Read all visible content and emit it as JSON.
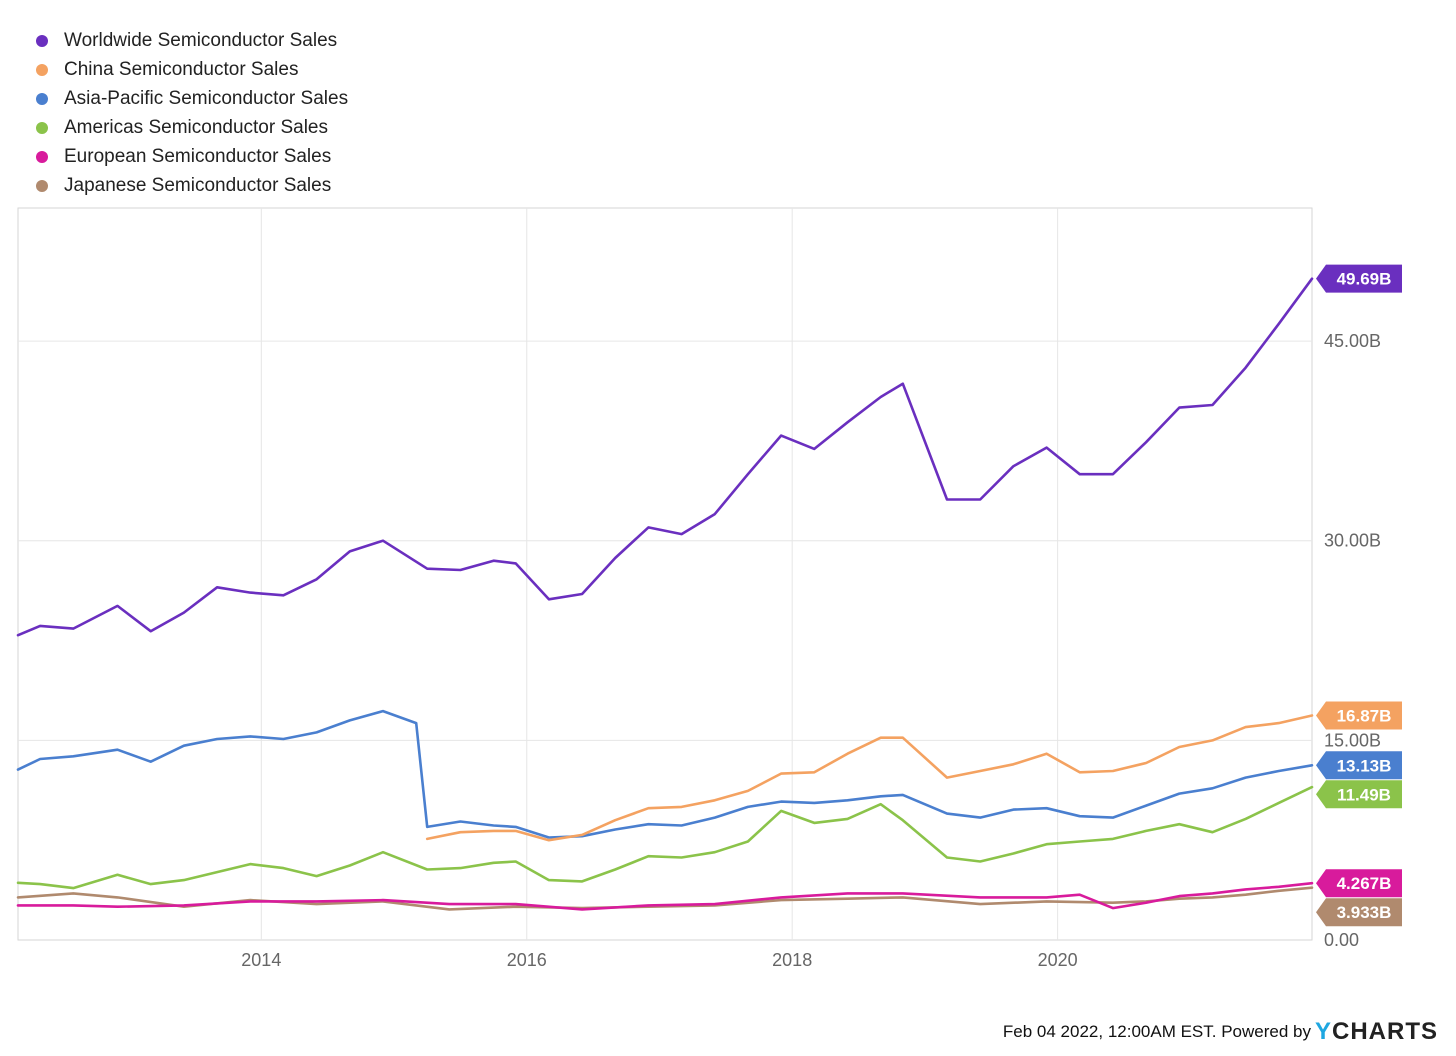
{
  "chart_data": {
    "type": "line",
    "title": "",
    "xlabel": "",
    "ylabel": "",
    "x_ticks": [
      "2014",
      "2016",
      "2018",
      "2020"
    ],
    "y_ticks": [
      "0.00",
      "15.00B",
      "30.00B",
      "45.00B"
    ],
    "ylim": [
      0,
      55
    ],
    "xlim": [
      "2012-03",
      "2021-12"
    ],
    "legend_position": "top-left",
    "grid": true,
    "series": [
      {
        "name": "Worldwide Semiconductor Sales",
        "color": "#6a2fbf",
        "end_label": "49.69B",
        "points": [
          [
            "2012-03",
            22.9
          ],
          [
            "2012-05",
            23.6
          ],
          [
            "2012-08",
            23.4
          ],
          [
            "2012-12",
            25.1
          ],
          [
            "2013-03",
            23.2
          ],
          [
            "2013-06",
            24.6
          ],
          [
            "2013-09",
            26.5
          ],
          [
            "2013-12",
            26.1
          ],
          [
            "2014-03",
            25.9
          ],
          [
            "2014-06",
            27.1
          ],
          [
            "2014-09",
            29.2
          ],
          [
            "2014-12",
            30.0
          ],
          [
            "2015-04",
            27.9
          ],
          [
            "2015-07",
            27.8
          ],
          [
            "2015-10",
            28.5
          ],
          [
            "2015-12",
            28.3
          ],
          [
            "2016-03",
            25.6
          ],
          [
            "2016-06",
            26.0
          ],
          [
            "2016-09",
            28.7
          ],
          [
            "2016-12",
            31.0
          ],
          [
            "2017-03",
            30.5
          ],
          [
            "2017-06",
            32.0
          ],
          [
            "2017-09",
            35.0
          ],
          [
            "2017-12",
            37.9
          ],
          [
            "2018-03",
            36.9
          ],
          [
            "2018-06",
            38.9
          ],
          [
            "2018-09",
            40.8
          ],
          [
            "2018-11",
            41.8
          ],
          [
            "2019-03",
            33.1
          ],
          [
            "2019-06",
            33.1
          ],
          [
            "2019-09",
            35.6
          ],
          [
            "2019-12",
            37.0
          ],
          [
            "2020-03",
            35.0
          ],
          [
            "2020-06",
            35.0
          ],
          [
            "2020-09",
            37.4
          ],
          [
            "2020-12",
            40.0
          ],
          [
            "2021-03",
            40.2
          ],
          [
            "2021-06",
            43.0
          ],
          [
            "2021-09",
            46.3
          ],
          [
            "2021-12",
            49.69
          ]
        ]
      },
      {
        "name": "China Semiconductor Sales",
        "color": "#f4a261",
        "end_label": "16.87B",
        "points": [
          [
            "2015-04",
            7.6
          ],
          [
            "2015-07",
            8.1
          ],
          [
            "2015-10",
            8.2
          ],
          [
            "2015-12",
            8.2
          ],
          [
            "2016-03",
            7.5
          ],
          [
            "2016-06",
            7.9
          ],
          [
            "2016-09",
            9.0
          ],
          [
            "2016-12",
            9.9
          ],
          [
            "2017-03",
            10.0
          ],
          [
            "2017-06",
            10.5
          ],
          [
            "2017-09",
            11.2
          ],
          [
            "2017-12",
            12.5
          ],
          [
            "2018-03",
            12.6
          ],
          [
            "2018-06",
            14.0
          ],
          [
            "2018-09",
            15.2
          ],
          [
            "2018-11",
            15.2
          ],
          [
            "2019-03",
            12.2
          ],
          [
            "2019-06",
            12.7
          ],
          [
            "2019-09",
            13.2
          ],
          [
            "2019-12",
            14.0
          ],
          [
            "2020-03",
            12.6
          ],
          [
            "2020-06",
            12.7
          ],
          [
            "2020-09",
            13.3
          ],
          [
            "2020-12",
            14.5
          ],
          [
            "2021-03",
            15.0
          ],
          [
            "2021-06",
            16.0
          ],
          [
            "2021-09",
            16.3
          ],
          [
            "2021-12",
            16.87
          ]
        ]
      },
      {
        "name": "Asia-Pacific Semiconductor Sales",
        "color": "#4a7fcf",
        "end_label": "13.13B",
        "points": [
          [
            "2012-03",
            12.8
          ],
          [
            "2012-05",
            13.6
          ],
          [
            "2012-08",
            13.8
          ],
          [
            "2012-12",
            14.3
          ],
          [
            "2013-03",
            13.4
          ],
          [
            "2013-06",
            14.6
          ],
          [
            "2013-09",
            15.1
          ],
          [
            "2013-12",
            15.3
          ],
          [
            "2014-03",
            15.1
          ],
          [
            "2014-06",
            15.6
          ],
          [
            "2014-09",
            16.5
          ],
          [
            "2014-12",
            17.2
          ],
          [
            "2015-03",
            16.3
          ],
          [
            "2015-04",
            8.5
          ],
          [
            "2015-07",
            8.9
          ],
          [
            "2015-10",
            8.6
          ],
          [
            "2015-12",
            8.5
          ],
          [
            "2016-03",
            7.7
          ],
          [
            "2016-06",
            7.8
          ],
          [
            "2016-09",
            8.3
          ],
          [
            "2016-12",
            8.7
          ],
          [
            "2017-03",
            8.6
          ],
          [
            "2017-06",
            9.2
          ],
          [
            "2017-09",
            10.0
          ],
          [
            "2017-12",
            10.4
          ],
          [
            "2018-03",
            10.3
          ],
          [
            "2018-06",
            10.5
          ],
          [
            "2018-09",
            10.8
          ],
          [
            "2018-11",
            10.9
          ],
          [
            "2019-03",
            9.5
          ],
          [
            "2019-06",
            9.2
          ],
          [
            "2019-09",
            9.8
          ],
          [
            "2019-12",
            9.9
          ],
          [
            "2020-03",
            9.3
          ],
          [
            "2020-06",
            9.2
          ],
          [
            "2020-09",
            10.1
          ],
          [
            "2020-12",
            11.0
          ],
          [
            "2021-03",
            11.4
          ],
          [
            "2021-06",
            12.2
          ],
          [
            "2021-09",
            12.7
          ],
          [
            "2021-12",
            13.13
          ]
        ]
      },
      {
        "name": "Americas Semiconductor Sales",
        "color": "#8bc34a",
        "end_label": "11.49B",
        "points": [
          [
            "2012-03",
            4.3
          ],
          [
            "2012-05",
            4.2
          ],
          [
            "2012-08",
            3.9
          ],
          [
            "2012-12",
            4.9
          ],
          [
            "2013-03",
            4.2
          ],
          [
            "2013-06",
            4.5
          ],
          [
            "2013-09",
            5.1
          ],
          [
            "2013-12",
            5.7
          ],
          [
            "2014-03",
            5.4
          ],
          [
            "2014-06",
            4.8
          ],
          [
            "2014-09",
            5.6
          ],
          [
            "2014-12",
            6.6
          ],
          [
            "2015-04",
            5.3
          ],
          [
            "2015-07",
            5.4
          ],
          [
            "2015-10",
            5.8
          ],
          [
            "2015-12",
            5.9
          ],
          [
            "2016-03",
            4.5
          ],
          [
            "2016-06",
            4.4
          ],
          [
            "2016-09",
            5.3
          ],
          [
            "2016-12",
            6.3
          ],
          [
            "2017-03",
            6.2
          ],
          [
            "2017-06",
            6.6
          ],
          [
            "2017-09",
            7.4
          ],
          [
            "2017-12",
            9.7
          ],
          [
            "2018-03",
            8.8
          ],
          [
            "2018-06",
            9.1
          ],
          [
            "2018-09",
            10.2
          ],
          [
            "2018-11",
            9.0
          ],
          [
            "2019-03",
            6.2
          ],
          [
            "2019-06",
            5.9
          ],
          [
            "2019-09",
            6.5
          ],
          [
            "2019-12",
            7.2
          ],
          [
            "2020-03",
            7.4
          ],
          [
            "2020-06",
            7.6
          ],
          [
            "2020-09",
            8.2
          ],
          [
            "2020-12",
            8.7
          ],
          [
            "2021-03",
            8.1
          ],
          [
            "2021-06",
            9.1
          ],
          [
            "2021-09",
            10.3
          ],
          [
            "2021-12",
            11.49
          ]
        ]
      },
      {
        "name": "European Semiconductor Sales",
        "color": "#d81b9c",
        "end_label": "4.267B",
        "points": [
          [
            "2012-03",
            2.6
          ],
          [
            "2012-08",
            2.6
          ],
          [
            "2012-12",
            2.5
          ],
          [
            "2013-06",
            2.6
          ],
          [
            "2013-12",
            2.9
          ],
          [
            "2014-06",
            2.9
          ],
          [
            "2014-12",
            3.0
          ],
          [
            "2015-06",
            2.7
          ],
          [
            "2015-12",
            2.7
          ],
          [
            "2016-06",
            2.3
          ],
          [
            "2016-12",
            2.6
          ],
          [
            "2017-06",
            2.7
          ],
          [
            "2017-12",
            3.2
          ],
          [
            "2018-06",
            3.5
          ],
          [
            "2018-11",
            3.5
          ],
          [
            "2019-06",
            3.2
          ],
          [
            "2019-12",
            3.2
          ],
          [
            "2020-03",
            3.4
          ],
          [
            "2020-06",
            2.4
          ],
          [
            "2020-09",
            2.8
          ],
          [
            "2020-12",
            3.3
          ],
          [
            "2021-03",
            3.5
          ],
          [
            "2021-06",
            3.8
          ],
          [
            "2021-09",
            4.0
          ],
          [
            "2021-12",
            4.267
          ]
        ]
      },
      {
        "name": "Japanese Semiconductor Sales",
        "color": "#b08a6e",
        "end_label": "3.933B",
        "points": [
          [
            "2012-03",
            3.2
          ],
          [
            "2012-08",
            3.5
          ],
          [
            "2012-12",
            3.2
          ],
          [
            "2013-06",
            2.5
          ],
          [
            "2013-12",
            3.0
          ],
          [
            "2014-06",
            2.7
          ],
          [
            "2014-12",
            2.9
          ],
          [
            "2015-06",
            2.3
          ],
          [
            "2015-12",
            2.5
          ],
          [
            "2016-06",
            2.4
          ],
          [
            "2016-12",
            2.5
          ],
          [
            "2017-06",
            2.6
          ],
          [
            "2017-12",
            3.0
          ],
          [
            "2018-06",
            3.1
          ],
          [
            "2018-11",
            3.2
          ],
          [
            "2019-06",
            2.7
          ],
          [
            "2019-12",
            2.9
          ],
          [
            "2020-06",
            2.8
          ],
          [
            "2020-09",
            2.9
          ],
          [
            "2020-12",
            3.1
          ],
          [
            "2021-03",
            3.2
          ],
          [
            "2021-06",
            3.4
          ],
          [
            "2021-09",
            3.7
          ],
          [
            "2021-12",
            3.933
          ]
        ]
      }
    ]
  },
  "footer": {
    "text": "Feb 04 2022, 12:00AM EST. Powered by",
    "brand_prefix": "Y",
    "brand_rest": "CHARTS"
  }
}
